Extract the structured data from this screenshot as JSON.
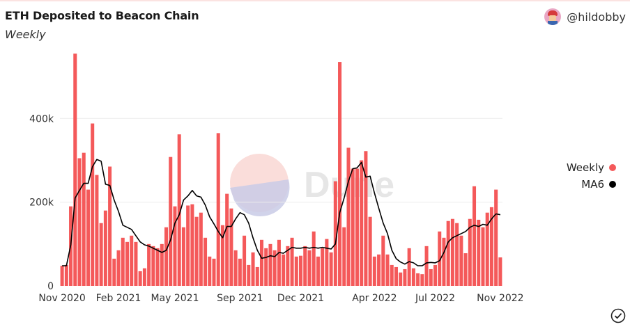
{
  "header": {
    "title": "ETH Deposited to Beacon Chain",
    "subtitle": "Weekly",
    "author": "@hildobby"
  },
  "watermark": "Dune",
  "legend": [
    {
      "label": "Weekly",
      "color": "#f4595a"
    },
    {
      "label": "MA6",
      "color": "#000000"
    }
  ],
  "icons": {
    "avatar": "avatar-icon",
    "check": "check-circle-icon"
  },
  "chart_data": {
    "type": "bar",
    "title": "ETH Deposited to Beacon Chain",
    "subtitle": "Weekly",
    "xlabel": "",
    "ylabel": "",
    "ylim": [
      0,
      580000
    ],
    "y_ticks": [
      0,
      200000,
      400000
    ],
    "y_tick_labels": [
      "0",
      "200k",
      "400k"
    ],
    "x_ticks": [
      {
        "label": "Nov 2020",
        "index": 0
      },
      {
        "label": "Feb 2021",
        "index": 13
      },
      {
        "label": "May 2021",
        "index": 26
      },
      {
        "label": "Sep 2021",
        "index": 41
      },
      {
        "label": "Dec 2021",
        "index": 55
      },
      {
        "label": "Apr 2022",
        "index": 72
      },
      {
        "label": "Jul 2022",
        "index": 86
      },
      {
        "label": "Nov 2022",
        "index": 101
      }
    ],
    "series": [
      {
        "name": "Weekly",
        "type": "bar",
        "color": "#f4595a",
        "values": [
          48000,
          50000,
          190000,
          555000,
          305000,
          318000,
          230000,
          388000,
          265000,
          150000,
          180000,
          285000,
          65000,
          85000,
          115000,
          105000,
          120000,
          105000,
          35000,
          42000,
          100000,
          95000,
          90000,
          100000,
          140000,
          308000,
          190000,
          362000,
          140000,
          192000,
          195000,
          165000,
          175000,
          115000,
          70000,
          65000,
          365000,
          145000,
          220000,
          185000,
          85000,
          65000,
          120000,
          50000,
          80000,
          45000,
          110000,
          90000,
          100000,
          85000,
          110000,
          75000,
          95000,
          115000,
          70000,
          72000,
          95000,
          85000,
          130000,
          70000,
          90000,
          112000,
          80000,
          250000,
          535000,
          140000,
          330000,
          280000,
          280000,
          300000,
          322000,
          165000,
          70000,
          75000,
          120000,
          75000,
          50000,
          45000,
          32000,
          40000,
          90000,
          42000,
          30000,
          28000,
          95000,
          40000,
          50000,
          130000,
          115000,
          155000,
          160000,
          150000,
          120000,
          78000,
          160000,
          238000,
          158000,
          140000,
          175000,
          188000,
          230000,
          68000
        ]
      },
      {
        "name": "MA6",
        "type": "line",
        "color": "#000000",
        "values": [
          48000,
          48000,
          98000,
          210000,
          228000,
          245000,
          245000,
          285000,
          302000,
          298000,
          243000,
          240000,
          205000,
          178000,
          145000,
          140000,
          135000,
          120000,
          105000,
          98000,
          95000,
          90000,
          85000,
          80000,
          85000,
          110000,
          150000,
          170000,
          205000,
          215000,
          228000,
          215000,
          212000,
          193000,
          165000,
          148000,
          130000,
          115000,
          142000,
          142000,
          160000,
          175000,
          170000,
          150000,
          115000,
          85000,
          66000,
          68000,
          72000,
          70000,
          80000,
          78000,
          85000,
          92000,
          90000,
          90000,
          92000,
          90000,
          92000,
          90000,
          92000,
          90000,
          88000,
          100000,
          175000,
          210000,
          250000,
          280000,
          282000,
          295000,
          260000,
          262000,
          222000,
          185000,
          150000,
          125000,
          85000,
          65000,
          57000,
          52000,
          58000,
          55000,
          48000,
          48000,
          55000,
          56000,
          55000,
          60000,
          80000,
          105000,
          115000,
          120000,
          125000,
          130000,
          140000,
          145000,
          142000,
          147000,
          145000,
          160000,
          172000,
          170000
        ]
      }
    ],
    "grid": true,
    "legend_position": "right"
  }
}
